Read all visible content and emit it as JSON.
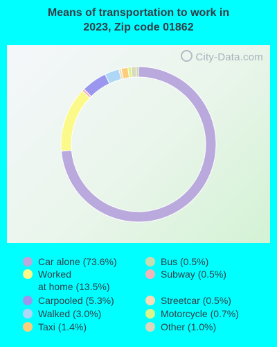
{
  "title_line1": "Means of transportation to work in",
  "title_line2": "2023, Zip code 01862",
  "watermark": "City-Data.com",
  "chart_data": {
    "type": "pie",
    "title": "Means of transportation to work in 2023, Zip code 01862",
    "donut": true,
    "slices": [
      {
        "label": "Car alone (73.6%)",
        "value": 73.6,
        "color": "#b9a9dc"
      },
      {
        "label": "Bus (0.5%)",
        "value": 0.5,
        "color": "#c6dcb1"
      },
      {
        "label": "Worked at home (13.5%)",
        "label_line1": "Worked",
        "label_line2": "at home (13.5%)",
        "value": 13.5,
        "color": "#fbf98a"
      },
      {
        "label": "Subway (0.5%)",
        "value": 0.5,
        "color": "#f1b6b9"
      },
      {
        "label": "Carpooled (5.3%)",
        "value": 5.3,
        "color": "#9b97ef"
      },
      {
        "label": "Streetcar (0.5%)",
        "value": 0.5,
        "color": "#f6dcb7"
      },
      {
        "label": "Walked (3.0%)",
        "value": 3.0,
        "color": "#aed7f6"
      },
      {
        "label": "Motorcycle (0.7%)",
        "value": 0.7,
        "color": "#d9f58c"
      },
      {
        "label": "Taxi (1.4%)",
        "value": 1.4,
        "color": "#fbce7c"
      },
      {
        "label": "Other (1.0%)",
        "value": 1.0,
        "color": "#dcd7bd"
      }
    ],
    "legend_placement": "bottom"
  }
}
